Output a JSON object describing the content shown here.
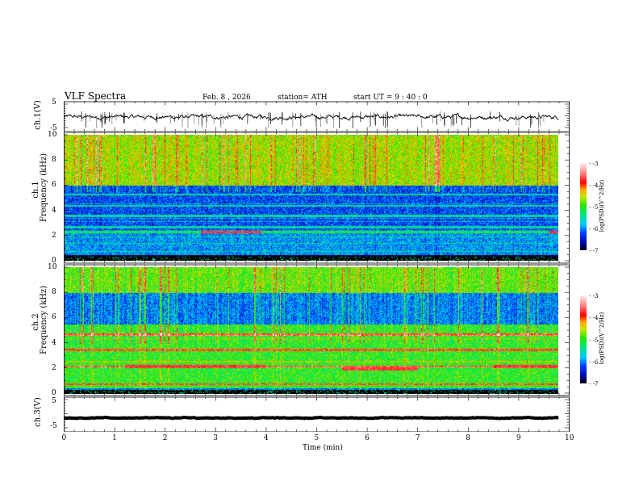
{
  "header": {
    "title": "VLF  Spectra",
    "date": "Feb. 8  , 2026",
    "station": "station= ATH",
    "start_ut": "start  UT  =   9  : 40 : 0"
  },
  "chart_data": [
    {
      "type": "line",
      "name": "ch1-waveform",
      "ylabel": "ch.1(V)",
      "ylim": [
        -5,
        5
      ],
      "yticks": [
        "5",
        "-5"
      ],
      "xlim": [
        0,
        10
      ],
      "data_end_min": 9.8,
      "mean_level": -0.5,
      "description_values": {
        "noise_amplitude": 0.8,
        "spike_min": -5
      }
    },
    {
      "type": "heatmap",
      "name": "ch1-spectrogram",
      "ylabel": "ch.1\nFrequency (kHz)",
      "ylabel_lines": [
        "ch.1",
        "Frequency  (kHz)"
      ],
      "ylim": [
        0,
        10
      ],
      "yticks": [
        "0",
        "2",
        "4",
        "6",
        "8",
        "10"
      ],
      "xlim": [
        0,
        10
      ],
      "colorbar": {
        "label": "log(PSD)(V^2/Hz)",
        "range": [
          -7,
          -3
        ],
        "ticks": [
          "-3",
          "-4",
          "-5",
          "-6",
          "-7"
        ]
      },
      "bands": [
        {
          "from_khz": 6,
          "to_khz": 10,
          "level": -4.6
        },
        {
          "from_khz": 2.5,
          "to_khz": 6,
          "level": -6.2
        },
        {
          "from_khz": 0.5,
          "to_khz": 2.5,
          "level": -5.9
        },
        {
          "from_khz": 0,
          "to_khz": 0.5,
          "level": -7
        }
      ],
      "lines_khz": [
        5.3,
        4.4,
        3.6,
        2.7,
        2.3
      ],
      "enhancements": [
        {
          "t_from": 2.7,
          "t_to": 3.9,
          "khz": 2.3
        },
        {
          "t_from": 9.6,
          "t_to": 9.8,
          "khz": 2.3
        }
      ]
    },
    {
      "type": "heatmap",
      "name": "ch2-spectrogram",
      "ylabel_lines": [
        "ch.2",
        "Frequency  (kHz)"
      ],
      "ylim": [
        0,
        10
      ],
      "yticks": [
        "0",
        "2",
        "4",
        "6",
        "8",
        "10"
      ],
      "xlim": [
        0,
        10
      ],
      "colorbar": {
        "label": "log(PSD)(V^2/Hz)",
        "range": [
          -7,
          -3
        ],
        "ticks": [
          "-3",
          "-4",
          "-5",
          "-6",
          "-7"
        ]
      },
      "bands": [
        {
          "from_khz": 8,
          "to_khz": 10,
          "level": -4.8
        },
        {
          "from_khz": 5.5,
          "to_khz": 8,
          "level": -6.0
        },
        {
          "from_khz": 0.5,
          "to_khz": 5.5,
          "level": -5.0
        },
        {
          "from_khz": 0,
          "to_khz": 0.3,
          "level": -7
        }
      ],
      "lines_khz": [
        4.7,
        3.5,
        2.2,
        0.8
      ],
      "enhancements": [
        {
          "t_from": 1.2,
          "t_to": 4.0,
          "khz": 2.2
        },
        {
          "t_from": 5.5,
          "t_to": 7.0,
          "khz": 2.0
        },
        {
          "t_from": 8.5,
          "t_to": 9.8,
          "khz": 2.2
        }
      ]
    },
    {
      "type": "line",
      "name": "ch3-waveform",
      "ylabel": "ch.3(V)",
      "ylim": [
        -5,
        5
      ],
      "yticks": [
        "5",
        "-5"
      ],
      "xlim": [
        0,
        10
      ],
      "xlabel": "Time  (min)",
      "xticks": [
        "0",
        "1",
        "2",
        "3",
        "4",
        "5",
        "6",
        "7",
        "8",
        "9",
        "10"
      ],
      "mean_level": -1.5,
      "data_end_min": 9.8
    }
  ]
}
